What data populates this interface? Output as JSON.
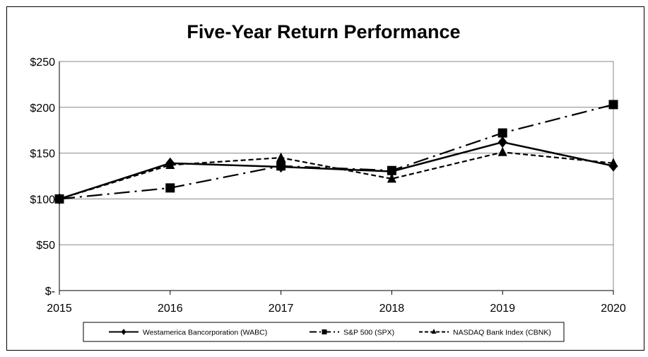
{
  "chart_data": {
    "type": "line",
    "title": "Five-Year Return Performance",
    "xlabel": "",
    "ylabel": "",
    "categories": [
      "2015",
      "2016",
      "2017",
      "2018",
      "2019",
      "2020"
    ],
    "y_ticks": [
      "$-",
      "$50",
      "$100",
      "$150",
      "$200",
      "$250"
    ],
    "ylim": [
      0,
      250
    ],
    "grid": "horizontal",
    "legend_position": "bottom",
    "series": [
      {
        "name": "Westamerica Bancorporation (WABC)",
        "values": [
          100,
          139,
          135,
          130,
          162,
          136
        ],
        "line_style": "solid",
        "marker": "diamond"
      },
      {
        "name": "S&P 500 (SPX)",
        "values": [
          100,
          112,
          136,
          131,
          172,
          203
        ],
        "line_style": "dash-dot",
        "marker": "square"
      },
      {
        "name": "NASDAQ Bank Index (CBNK)",
        "values": [
          100,
          137,
          145,
          122,
          151,
          139
        ],
        "line_style": "dashed",
        "marker": "triangle"
      }
    ],
    "colors": {
      "line": "#000000",
      "grid": "#888888",
      "background": "#ffffff"
    }
  }
}
